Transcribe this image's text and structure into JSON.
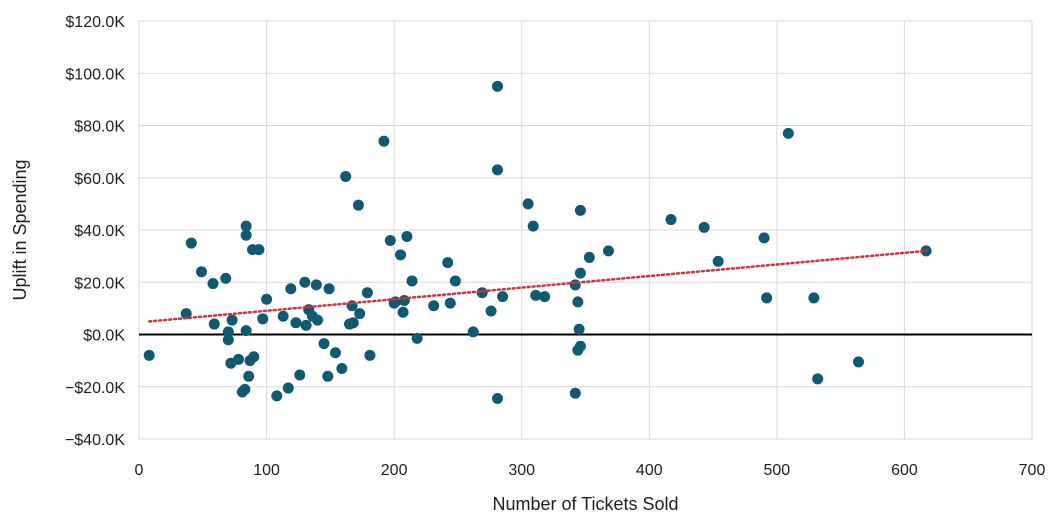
{
  "chart_data": {
    "type": "scatter",
    "title": "",
    "xlabel": "Number of Tickets Sold",
    "ylabel": "Uplift in Spending",
    "xlim": [
      0,
      700
    ],
    "ylim": [
      -40000,
      120000
    ],
    "grid": true,
    "x_ticks": [
      0,
      100,
      200,
      300,
      400,
      500,
      600,
      700
    ],
    "x_tick_labels": [
      "0",
      "100",
      "200",
      "300",
      "400",
      "500",
      "600",
      "700"
    ],
    "y_ticks": [
      -40000,
      -20000,
      0,
      20000,
      40000,
      60000,
      80000,
      100000,
      120000
    ],
    "y_tick_labels": [
      "−$40.0K",
      "−$20.0K",
      "$0.0K",
      "$20.0K",
      "$40.0K",
      "$60.0K",
      "$80.0K",
      "$100.0K",
      "$120.0K"
    ],
    "colors": {
      "points": "#0f5a73",
      "trendline": "#d0323f",
      "zero_line": "#000000",
      "grid": "#d9d9d9"
    },
    "trendline": {
      "style": "dotted",
      "x": [
        8,
        617
      ],
      "y": [
        5000,
        32000
      ]
    },
    "points": [
      {
        "x": 8,
        "y": -8000
      },
      {
        "x": 37,
        "y": 8000
      },
      {
        "x": 41,
        "y": 35000
      },
      {
        "x": 49,
        "y": 24000
      },
      {
        "x": 58,
        "y": 19500
      },
      {
        "x": 59,
        "y": 4000
      },
      {
        "x": 68,
        "y": 21500
      },
      {
        "x": 70,
        "y": 1000
      },
      {
        "x": 70,
        "y": -2000
      },
      {
        "x": 72,
        "y": -11000
      },
      {
        "x": 73,
        "y": 5500
      },
      {
        "x": 78,
        "y": -9500
      },
      {
        "x": 81,
        "y": -22000
      },
      {
        "x": 83,
        "y": -21000
      },
      {
        "x": 84,
        "y": 1500
      },
      {
        "x": 84,
        "y": 41500
      },
      {
        "x": 84,
        "y": 38000
      },
      {
        "x": 86,
        "y": -16000
      },
      {
        "x": 87,
        "y": -10000
      },
      {
        "x": 89,
        "y": 32500
      },
      {
        "x": 90,
        "y": -8500
      },
      {
        "x": 94,
        "y": 32500
      },
      {
        "x": 97,
        "y": 6000
      },
      {
        "x": 100,
        "y": 13500
      },
      {
        "x": 108,
        "y": -23500
      },
      {
        "x": 113,
        "y": 7000
      },
      {
        "x": 117,
        "y": -20500
      },
      {
        "x": 119,
        "y": 17500
      },
      {
        "x": 123,
        "y": 4500
      },
      {
        "x": 126,
        "y": -15500
      },
      {
        "x": 130,
        "y": 20000
      },
      {
        "x": 131,
        "y": 3500
      },
      {
        "x": 133,
        "y": 9500
      },
      {
        "x": 136,
        "y": 7000
      },
      {
        "x": 139,
        "y": 19000
      },
      {
        "x": 140,
        "y": 5500
      },
      {
        "x": 145,
        "y": -3500
      },
      {
        "x": 148,
        "y": -16000
      },
      {
        "x": 149,
        "y": 17500
      },
      {
        "x": 154,
        "y": -7000
      },
      {
        "x": 159,
        "y": -13000
      },
      {
        "x": 162,
        "y": 60500
      },
      {
        "x": 165,
        "y": 4000
      },
      {
        "x": 167,
        "y": 11000
      },
      {
        "x": 168,
        "y": 4500
      },
      {
        "x": 172,
        "y": 49500
      },
      {
        "x": 173,
        "y": 8000
      },
      {
        "x": 179,
        "y": 16000
      },
      {
        "x": 181,
        "y": -8000
      },
      {
        "x": 192,
        "y": 74000
      },
      {
        "x": 197,
        "y": 36000
      },
      {
        "x": 200,
        "y": 12000
      },
      {
        "x": 201,
        "y": 12500
      },
      {
        "x": 205,
        "y": 30500
      },
      {
        "x": 207,
        "y": 8500
      },
      {
        "x": 208,
        "y": 13000
      },
      {
        "x": 210,
        "y": 37500
      },
      {
        "x": 214,
        "y": 20500
      },
      {
        "x": 218,
        "y": -1500
      },
      {
        "x": 231,
        "y": 11000
      },
      {
        "x": 242,
        "y": 27500
      },
      {
        "x": 244,
        "y": 12000
      },
      {
        "x": 248,
        "y": 20500
      },
      {
        "x": 262,
        "y": 1000
      },
      {
        "x": 269,
        "y": 16000
      },
      {
        "x": 276,
        "y": 9000
      },
      {
        "x": 281,
        "y": 95000
      },
      {
        "x": 281,
        "y": 63000
      },
      {
        "x": 281,
        "y": -24500
      },
      {
        "x": 285,
        "y": 14500
      },
      {
        "x": 305,
        "y": 50000
      },
      {
        "x": 309,
        "y": 41500
      },
      {
        "x": 311,
        "y": 15000
      },
      {
        "x": 318,
        "y": 14500
      },
      {
        "x": 342,
        "y": 19000
      },
      {
        "x": 342,
        "y": -22500
      },
      {
        "x": 344,
        "y": 12500
      },
      {
        "x": 344,
        "y": -6000
      },
      {
        "x": 345,
        "y": 2000
      },
      {
        "x": 346,
        "y": 47500
      },
      {
        "x": 346,
        "y": 23500
      },
      {
        "x": 346,
        "y": -4500
      },
      {
        "x": 353,
        "y": 29500
      },
      {
        "x": 368,
        "y": 32000
      },
      {
        "x": 417,
        "y": 44000
      },
      {
        "x": 443,
        "y": 41000
      },
      {
        "x": 454,
        "y": 28000
      },
      {
        "x": 490,
        "y": 37000
      },
      {
        "x": 492,
        "y": 14000
      },
      {
        "x": 509,
        "y": 77000
      },
      {
        "x": 529,
        "y": 14000
      },
      {
        "x": 532,
        "y": -17000
      },
      {
        "x": 564,
        "y": -10500
      },
      {
        "x": 617,
        "y": 32000
      }
    ]
  }
}
